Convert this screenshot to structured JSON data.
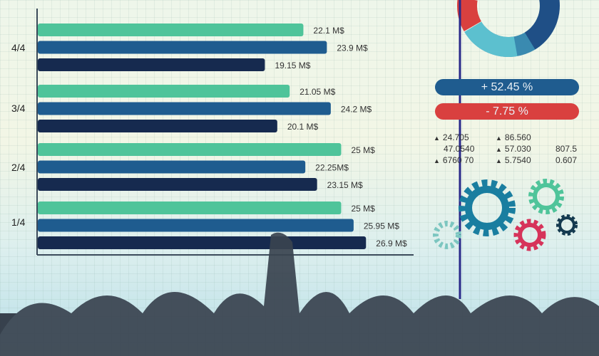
{
  "chart_data": {
    "type": "bar",
    "orientation": "horizontal",
    "categories": [
      "4/4",
      "3/4",
      "2/4",
      "1/4"
    ],
    "series": [
      {
        "values": [
          22.1,
          21.05,
          25,
          25
        ],
        "labels": [
          "22.1 M$",
          "21.05 M$",
          "25 M$",
          "25 M$"
        ],
        "color": "#4fc49a"
      },
      {
        "values": [
          23.9,
          24.2,
          22.25,
          25.95
        ],
        "labels": [
          "23.9 M$",
          "24.2 M$",
          "22.25M$",
          "25.95 M$"
        ],
        "color": "#1f5c8f"
      },
      {
        "values": [
          19.15,
          20.1,
          23.15,
          26.9
        ],
        "labels": [
          "19.15 M$",
          "20.1 M$",
          "23.15 M$",
          "26.9 M$"
        ],
        "color": "#162a4f"
      }
    ],
    "grid": true
  },
  "badges": {
    "positive": "+ 52.45 %",
    "negative": "- 7.75 %",
    "positive_color": "#1f5c8f",
    "negative_color": "#d9403f"
  },
  "stats": {
    "col1": [
      "24.705",
      "47.0540",
      "6760 70"
    ],
    "col2": [
      "86.560",
      "57.030",
      "5.7540"
    ],
    "col3": [
      "807.5",
      "0.607"
    ]
  },
  "icons": [
    "donut-chart",
    "gear",
    "gear",
    "gear",
    "gear",
    "gear"
  ]
}
